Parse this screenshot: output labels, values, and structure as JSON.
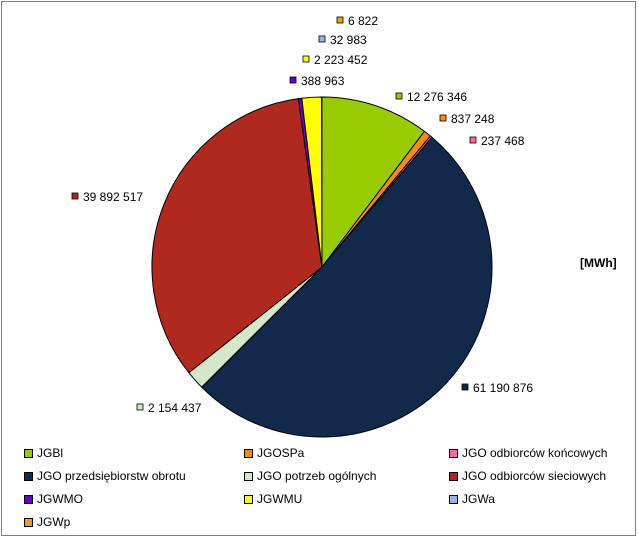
{
  "unit_label": "[MWh]",
  "chart_data": {
    "type": "pie",
    "title": "",
    "unit": "[MWh]",
    "legend_position": "bottom",
    "start_angle_deg": 0,
    "direction": "clockwise",
    "slices": [
      {
        "name": "JGBl",
        "value": 12276346,
        "label": "12 276 346",
        "color": "#99CC00"
      },
      {
        "name": "JGOSPa",
        "value": 837248,
        "label": "837 248",
        "color": "#FF8C00"
      },
      {
        "name": "JGO odbiorców końcowych",
        "value": 237468,
        "label": "237 468",
        "color": "#FF6699"
      },
      {
        "name": "JGO przedsiębiorstw obrotu",
        "value": 61190876,
        "label": "61 190 876",
        "color": "#13294B"
      },
      {
        "name": "JGO potrzeb ogólnych",
        "value": 2154437,
        "label": "2 154 437",
        "color": "#D6E6C8"
      },
      {
        "name": "JGO odbiorców sieciowych",
        "value": 39892517,
        "label": "39 892 517",
        "color": "#B0291E"
      },
      {
        "name": "JGWMO",
        "value": 388963,
        "label": "388 963",
        "color": "#6600CC"
      },
      {
        "name": "JGWMU",
        "value": 2223452,
        "label": "2 223 452",
        "color": "#FFFF00"
      },
      {
        "name": "JGWa",
        "value": 32983,
        "label": "32 983",
        "color": "#99B3E6"
      },
      {
        "name": "JGWp",
        "value": 6822,
        "label": "6 822",
        "color": "#E6A020"
      }
    ]
  }
}
